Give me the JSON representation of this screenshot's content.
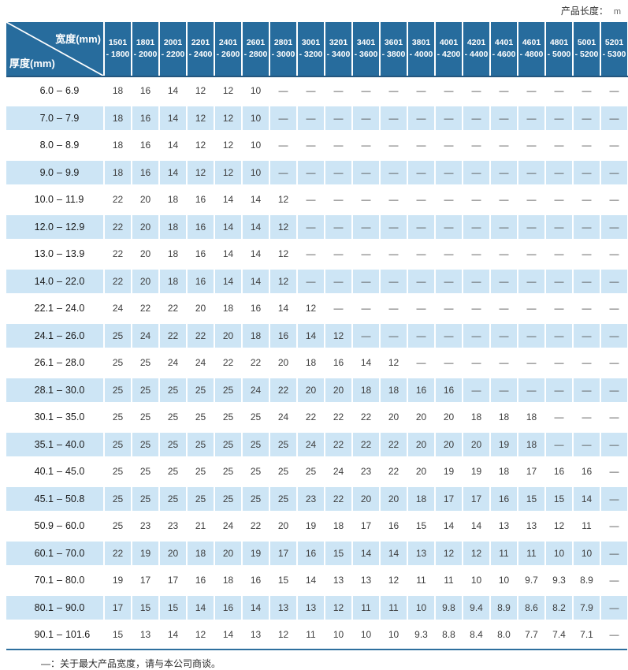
{
  "header": {
    "product_length_label": "产品长度：",
    "product_length_unit": "m"
  },
  "colors": {
    "header_bg": "#276C9D",
    "stripe_bg": "#CDE5F5",
    "rule_blue": "#2E6F9E"
  },
  "table": {
    "corner": {
      "width_label": "宽度(mm)",
      "thickness_label": "厚度(mm)"
    },
    "range_separator": "–",
    "columns": [
      {
        "from": "1501",
        "to": "- 1800"
      },
      {
        "from": "1801",
        "to": "- 2000"
      },
      {
        "from": "2001",
        "to": "- 2200"
      },
      {
        "from": "2201",
        "to": "- 2400"
      },
      {
        "from": "2401",
        "to": "- 2600"
      },
      {
        "from": "2601",
        "to": "- 2800"
      },
      {
        "from": "2801",
        "to": "- 3000"
      },
      {
        "from": "3001",
        "to": "- 3200"
      },
      {
        "from": "3201",
        "to": "- 3400"
      },
      {
        "from": "3401",
        "to": "- 3600"
      },
      {
        "from": "3601",
        "to": "- 3800"
      },
      {
        "from": "3801",
        "to": "- 4000"
      },
      {
        "from": "4001",
        "to": "- 4200"
      },
      {
        "from": "4201",
        "to": "- 4400"
      },
      {
        "from": "4401",
        "to": "- 4600"
      },
      {
        "from": "4601",
        "to": "- 4800"
      },
      {
        "from": "4801",
        "to": "- 5000"
      },
      {
        "from": "5001",
        "to": "- 5200"
      },
      {
        "from": "5201",
        "to": "- 5300"
      }
    ],
    "rows": [
      {
        "lo": "6.0",
        "hi": "6.9",
        "values": [
          "18",
          "16",
          "14",
          "12",
          "12",
          "10",
          "—",
          "—",
          "—",
          "—",
          "—",
          "—",
          "—",
          "—",
          "—",
          "—",
          "—",
          "—",
          "—"
        ]
      },
      {
        "lo": "7.0",
        "hi": "7.9",
        "values": [
          "18",
          "16",
          "14",
          "12",
          "12",
          "10",
          "—",
          "—",
          "—",
          "—",
          "—",
          "—",
          "—",
          "—",
          "—",
          "—",
          "—",
          "—",
          "—"
        ]
      },
      {
        "lo": "8.0",
        "hi": "8.9",
        "values": [
          "18",
          "16",
          "14",
          "12",
          "12",
          "10",
          "—",
          "—",
          "—",
          "—",
          "—",
          "—",
          "—",
          "—",
          "—",
          "—",
          "—",
          "—",
          "—"
        ]
      },
      {
        "lo": "9.0",
        "hi": "9.9",
        "values": [
          "18",
          "16",
          "14",
          "12",
          "12",
          "10",
          "—",
          "—",
          "—",
          "—",
          "—",
          "—",
          "—",
          "—",
          "—",
          "—",
          "—",
          "—",
          "—"
        ]
      },
      {
        "lo": "10.0",
        "hi": "11.9",
        "values": [
          "22",
          "20",
          "18",
          "16",
          "14",
          "14",
          "12",
          "—",
          "—",
          "—",
          "—",
          "—",
          "—",
          "—",
          "—",
          "—",
          "—",
          "—",
          "—"
        ]
      },
      {
        "lo": "12.0",
        "hi": "12.9",
        "values": [
          "22",
          "20",
          "18",
          "16",
          "14",
          "14",
          "12",
          "—",
          "—",
          "—",
          "—",
          "—",
          "—",
          "—",
          "—",
          "—",
          "—",
          "—",
          "—"
        ]
      },
      {
        "lo": "13.0",
        "hi": "13.9",
        "values": [
          "22",
          "20",
          "18",
          "16",
          "14",
          "14",
          "12",
          "—",
          "—",
          "—",
          "—",
          "—",
          "—",
          "—",
          "—",
          "—",
          "—",
          "—",
          "—"
        ]
      },
      {
        "lo": "14.0",
        "hi": "22.0",
        "values": [
          "22",
          "20",
          "18",
          "16",
          "14",
          "14",
          "12",
          "—",
          "—",
          "—",
          "—",
          "—",
          "—",
          "—",
          "—",
          "—",
          "—",
          "—",
          "—"
        ]
      },
      {
        "lo": "22.1",
        "hi": "24.0",
        "values": [
          "24",
          "22",
          "22",
          "20",
          "18",
          "16",
          "14",
          "12",
          "—",
          "—",
          "—",
          "—",
          "—",
          "—",
          "—",
          "—",
          "—",
          "—",
          "—"
        ]
      },
      {
        "lo": "24.1",
        "hi": "26.0",
        "values": [
          "25",
          "24",
          "22",
          "22",
          "20",
          "18",
          "16",
          "14",
          "12",
          "—",
          "—",
          "—",
          "—",
          "—",
          "—",
          "—",
          "—",
          "—",
          "—"
        ]
      },
      {
        "lo": "26.1",
        "hi": "28.0",
        "values": [
          "25",
          "25",
          "24",
          "24",
          "22",
          "22",
          "20",
          "18",
          "16",
          "14",
          "12",
          "—",
          "—",
          "—",
          "—",
          "—",
          "—",
          "—",
          "—"
        ]
      },
      {
        "lo": "28.1",
        "hi": "30.0",
        "values": [
          "25",
          "25",
          "25",
          "25",
          "25",
          "24",
          "22",
          "20",
          "20",
          "18",
          "18",
          "16",
          "16",
          "—",
          "—",
          "—",
          "—",
          "—",
          "—"
        ]
      },
      {
        "lo": "30.1",
        "hi": "35.0",
        "values": [
          "25",
          "25",
          "25",
          "25",
          "25",
          "25",
          "24",
          "22",
          "22",
          "22",
          "20",
          "20",
          "20",
          "18",
          "18",
          "18",
          "—",
          "—",
          "—"
        ]
      },
      {
        "lo": "35.1",
        "hi": "40.0",
        "values": [
          "25",
          "25",
          "25",
          "25",
          "25",
          "25",
          "25",
          "24",
          "22",
          "22",
          "22",
          "20",
          "20",
          "20",
          "19",
          "18",
          "—",
          "—",
          "—"
        ]
      },
      {
        "lo": "40.1",
        "hi": "45.0",
        "values": [
          "25",
          "25",
          "25",
          "25",
          "25",
          "25",
          "25",
          "25",
          "24",
          "23",
          "22",
          "20",
          "19",
          "19",
          "18",
          "17",
          "16",
          "16",
          "—"
        ]
      },
      {
        "lo": "45.1",
        "hi": "50.8",
        "values": [
          "25",
          "25",
          "25",
          "25",
          "25",
          "25",
          "25",
          "23",
          "22",
          "20",
          "20",
          "18",
          "17",
          "17",
          "16",
          "15",
          "15",
          "14",
          "—"
        ]
      },
      {
        "lo": "50.9",
        "hi": "60.0",
        "values": [
          "25",
          "23",
          "23",
          "21",
          "24",
          "22",
          "20",
          "19",
          "18",
          "17",
          "16",
          "15",
          "14",
          "14",
          "13",
          "13",
          "12",
          "11",
          "—"
        ]
      },
      {
        "lo": "60.1",
        "hi": "70.0",
        "values": [
          "22",
          "19",
          "20",
          "18",
          "20",
          "19",
          "17",
          "16",
          "15",
          "14",
          "14",
          "13",
          "12",
          "12",
          "11",
          "11",
          "10",
          "10",
          "—"
        ]
      },
      {
        "lo": "70.1",
        "hi": "80.0",
        "values": [
          "19",
          "17",
          "17",
          "16",
          "18",
          "16",
          "15",
          "14",
          "13",
          "13",
          "12",
          "11",
          "11",
          "10",
          "10",
          "9.7",
          "9.3",
          "8.9",
          "—"
        ]
      },
      {
        "lo": "80.1",
        "hi": "90.0",
        "values": [
          "17",
          "15",
          "15",
          "14",
          "16",
          "14",
          "13",
          "13",
          "12",
          "11",
          "11",
          "10",
          "9.8",
          "9.4",
          "8.9",
          "8.6",
          "8.2",
          "7.9",
          "—"
        ]
      },
      {
        "lo": "90.1",
        "hi": "101.6",
        "values": [
          "15",
          "13",
          "14",
          "12",
          "14",
          "13",
          "12",
          "11",
          "10",
          "10",
          "10",
          "9.3",
          "8.8",
          "8.4",
          "8.0",
          "7.7",
          "7.4",
          "7.1",
          "—"
        ]
      }
    ]
  },
  "footer": {
    "note": "—：关于最大产品宽度，请与本公司商谈。"
  }
}
